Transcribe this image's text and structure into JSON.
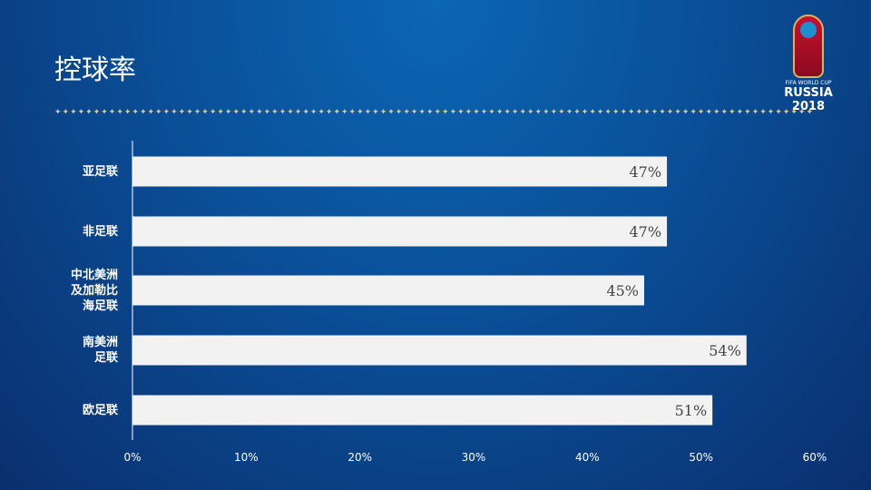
{
  "header": {
    "title": "控球率",
    "logo_small": "FIFA WORLD CUP",
    "logo_big": "RUSSIA 2018"
  },
  "divider": "✦✦✦✦✦✦✦✦✦✦✦✦✦✦✦✦✦✦✦✦✦✦✦✦✦✦✦✦✦✦✦✦✦✦✦✦✦✦✦✦✦✦✦✦✦✦✦✦✦✦✦✦✦✦✦✦✦✦✦✦✦✦✦✦✦✦✦✦✦✦✦✦✦✦✦✦✦✦✦✦✦✦✦✦✦✦✦✦✦✦✦✦✦✦✦✦✦✦",
  "chart_data": {
    "type": "bar",
    "orientation": "horizontal",
    "title": "控球率",
    "categories": [
      "亚足联",
      "非足联",
      "中北美洲及加勒比海足联",
      "南美洲足联",
      "欧足联"
    ],
    "category_lines": [
      [
        "亚足联"
      ],
      [
        "非足联"
      ],
      [
        "中北美洲",
        "及加勒比",
        "海足联"
      ],
      [
        "南美洲",
        "足联"
      ],
      [
        "欧足联"
      ]
    ],
    "values": [
      47,
      47,
      45,
      54,
      51
    ],
    "value_labels": [
      "47%",
      "47%",
      "45%",
      "54%",
      "51%"
    ],
    "xlim": [
      0,
      60
    ],
    "xticks": [
      "0%",
      "10%",
      "20%",
      "30%",
      "40%",
      "50%",
      "60%"
    ],
    "bar_color": "#f2f2f2",
    "grid": false,
    "legend": "none"
  }
}
